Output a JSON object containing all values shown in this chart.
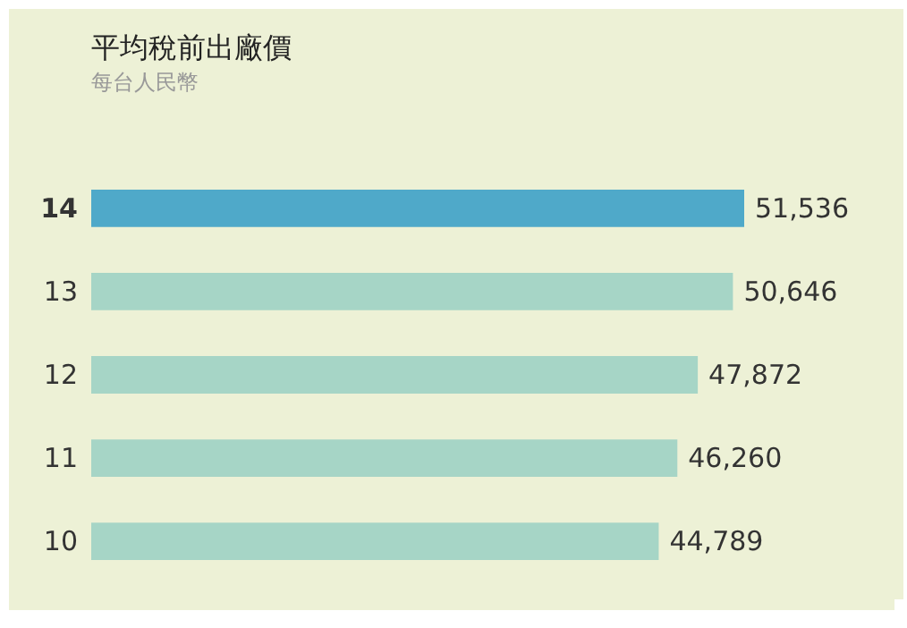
{
  "chart_data": {
    "type": "bar",
    "orientation": "horizontal",
    "title": "平均稅前出廠價",
    "subtitle": "每台人民幣",
    "categories": [
      "14",
      "13",
      "12",
      "11",
      "10"
    ],
    "values": [
      51536,
      50646,
      47872,
      46260,
      44789
    ],
    "colors": [
      "#4fa9c9",
      "#a6d5c6",
      "#a6d5c6",
      "#a6d5c6",
      "#a6d5c6"
    ],
    "value_labels": [
      "51,536",
      "50,646",
      "47,872",
      "46,260",
      "44,789"
    ]
  }
}
